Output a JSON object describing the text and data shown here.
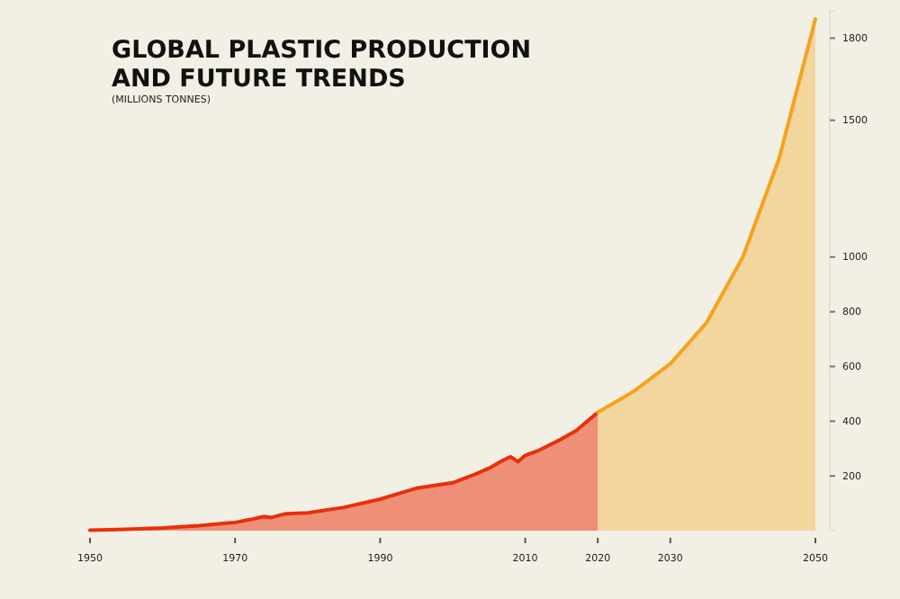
{
  "chart_data": {
    "type": "area",
    "title": "GLOBAL PLASTIC PRODUCTION\nAND FUTURE TRENDS",
    "subtitle": "(MILLIONS TONNES)",
    "series": [
      {
        "color": "#e8300a",
        "x": [
          1950,
          1955,
          1960,
          1965,
          1970,
          1972,
          1974,
          1975,
          1977,
          1980,
          1985,
          1990,
          1995,
          2000,
          2003,
          2005,
          2007,
          2008,
          2009,
          2010,
          2012,
          2015,
          2017,
          2020
        ],
        "values": [
          2,
          5,
          10,
          18,
          30,
          40,
          52,
          48,
          62,
          65,
          85,
          115,
          155,
          175,
          205,
          228,
          258,
          270,
          252,
          275,
          295,
          335,
          365,
          432
        ]
      },
      {
        "color": "#f5a21e",
        "x": [
          2020,
          2025,
          2030,
          2035,
          2040,
          2045,
          2050
        ],
        "values": [
          432,
          510,
          610,
          760,
          1000,
          1360,
          1870
        ]
      }
    ],
    "xlim": [
      1950,
      2050
    ],
    "xticks": [
      1950,
      1970,
      1990,
      2010,
      2020,
      2030,
      2050
    ],
    "ylim": [
      0,
      1900
    ],
    "yticks": [
      200,
      400,
      600,
      800,
      1000,
      1500,
      1800
    ]
  }
}
